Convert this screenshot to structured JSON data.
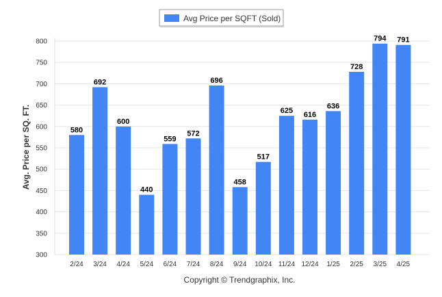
{
  "chart_data": {
    "type": "bar",
    "categories": [
      "2/24",
      "3/24",
      "4/24",
      "5/24",
      "6/24",
      "7/24",
      "8/24",
      "9/24",
      "10/24",
      "11/24",
      "12/24",
      "1/25",
      "2/25",
      "3/25",
      "4/25"
    ],
    "series": [
      {
        "name": "Avg Price per SQFT (Sold)",
        "color": "#4285f4",
        "values": [
          580,
          692,
          600,
          440,
          559,
          572,
          696,
          458,
          517,
          625,
          616,
          636,
          728,
          794,
          791
        ]
      }
    ],
    "ylabel": "Avg. Price per SQ. FT.",
    "xlabel": "",
    "ylim": [
      300,
      800
    ],
    "yticks": [
      300,
      350,
      400,
      450,
      500,
      550,
      600,
      650,
      700,
      750,
      800
    ],
    "grid": true,
    "legend": "top-center",
    "data_labels": true
  },
  "credit": "Copyright © Trendgraphix, Inc."
}
